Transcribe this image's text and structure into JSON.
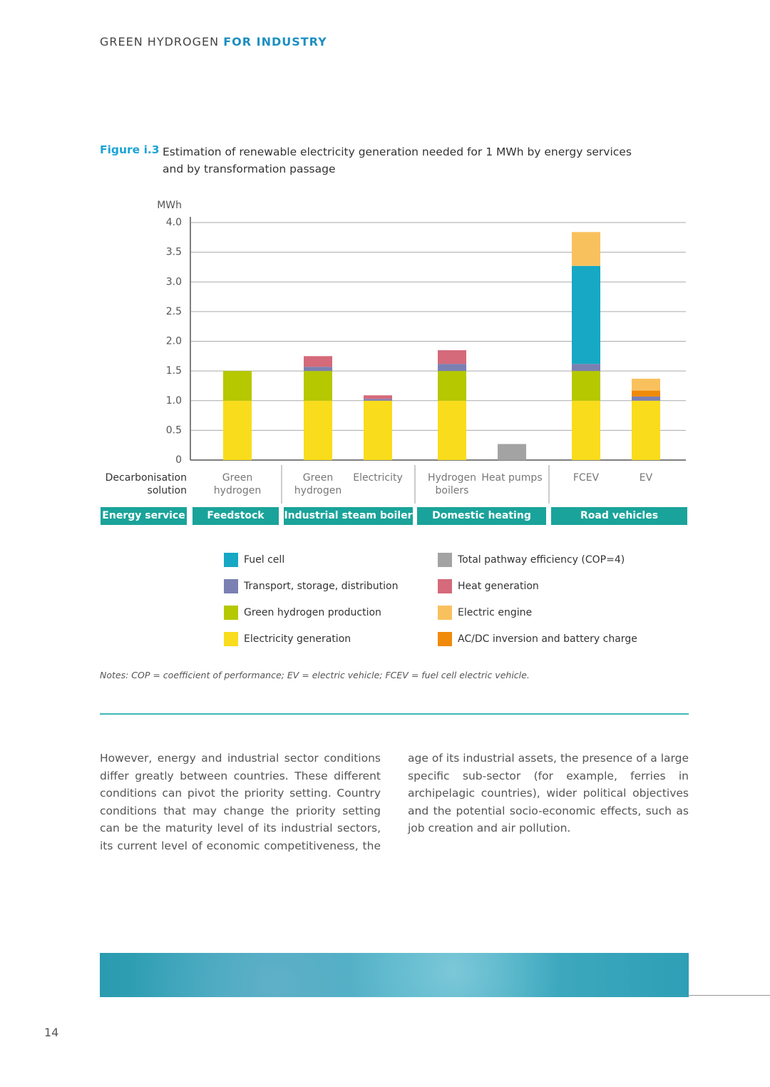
{
  "header": {
    "title": "GREEN HYDROGEN",
    "title_bold": "FOR INDUSTRY"
  },
  "figure": {
    "label": "Figure i.3",
    "caption": "Estimation of renewable electricity generation needed for 1 MWh by energy services and by transformation passage"
  },
  "chart_data": {
    "type": "stacked_bar",
    "y_label": "MWh",
    "categories": [
      "Green hydrogen",
      "Green hydrogen",
      "Electricity",
      "Hydrogen boilers",
      "Heat pumps",
      "FCEV",
      "EV"
    ],
    "row_labels": [
      "Decarbonisation solution",
      "Energy service"
    ],
    "groups": [
      "Feedstock",
      "Industrial steam boiler",
      "Domestic heating",
      "Road vehicles"
    ],
    "ylim": [
      0,
      4
    ],
    "yticks": [
      0,
      0.5,
      {
        "value": 1,
        "label": "1.0"
      },
      1.5,
      {
        "value": 2,
        "label": "2.0"
      },
      2.5,
      {
        "value": 3,
        "label": "3.0"
      },
      3.5,
      {
        "value": 4,
        "label": "4.0"
      }
    ],
    "grid": true,
    "series": [
      {
        "name": "Electricity generation",
        "color": "#f9dc1c",
        "values": [
          1,
          1,
          1,
          1,
          null,
          1,
          1
        ]
      },
      {
        "name": "Total pathway efficiency (COP=4)",
        "color": "#a3a3a3",
        "values": [
          null,
          null,
          null,
          null,
          0.27,
          null,
          null
        ]
      },
      {
        "name": "Green hydrogen production",
        "color": "#b5c800",
        "values": [
          0.5,
          0.5,
          null,
          0.5,
          null,
          0.5,
          null
        ]
      },
      {
        "name": "Transport, storage, distribution",
        "color": "#7a80b2",
        "values": [
          null,
          0.07,
          0.03,
          0.12,
          null,
          0.12,
          0.07
        ]
      },
      {
        "name": "AC/DC inversion and battery charge",
        "color": "#f08a0a",
        "values": [
          null,
          null,
          null,
          null,
          null,
          null,
          0.1
        ]
      },
      {
        "name": "Fuel cell",
        "color": "#16a8c4",
        "values": [
          null,
          null,
          null,
          null,
          null,
          1.65,
          null
        ]
      },
      {
        "name": "Heat generation",
        "color": "#d46a7a",
        "values": [
          null,
          0.18,
          0.06,
          0.23,
          null,
          null,
          null
        ]
      },
      {
        "name": "Electric engine",
        "color": "#f9c15e",
        "values": [
          null,
          null,
          null,
          null,
          null,
          0.57,
          0.2
        ]
      }
    ]
  },
  "notes": "Notes: COP = coefficient of performance; EV = electric vehicle; FCEV = fuel cell electric vehicle.",
  "body": {
    "text": "However, energy and industrial sector conditions differ greatly between countries. These different conditions can pivot the priority setting. Country conditions that may change the priority setting can be the maturity level of its industrial sectors, its current level of economic competitiveness, the age of its industrial assets, the presence of a large specific sub-sector (for example, ferries in archipelagic countries), wider political objectives and the potential socio-economic effects, such as job creation and air pollution."
  },
  "page_number": "14"
}
